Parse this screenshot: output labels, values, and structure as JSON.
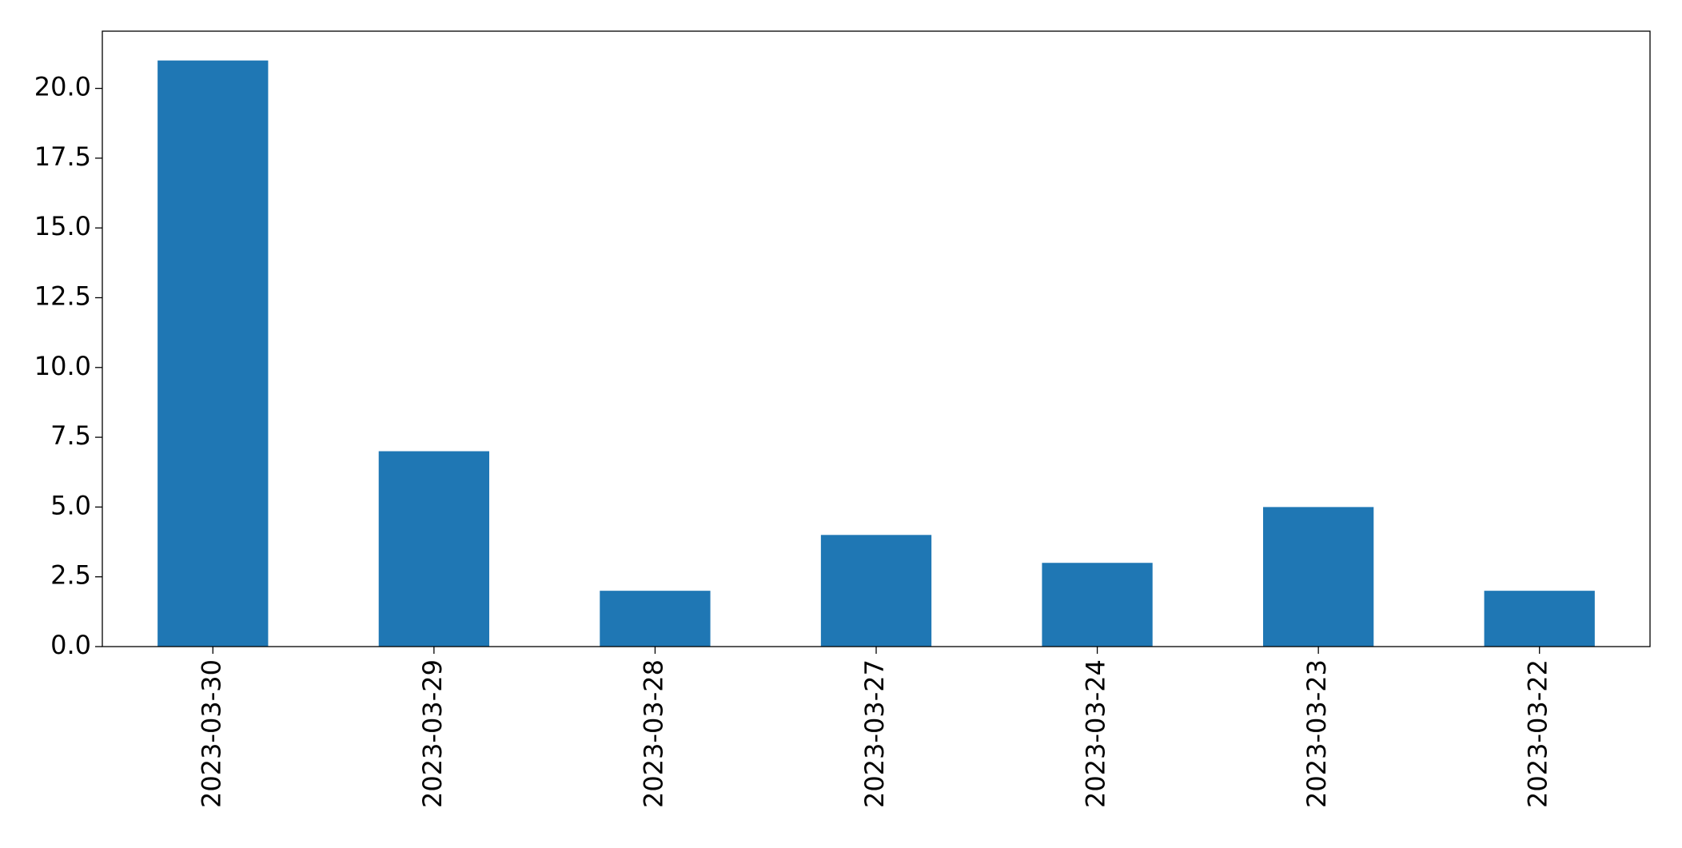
{
  "chart_data": {
    "type": "bar",
    "categories": [
      "2023-03-30",
      "2023-03-29",
      "2023-03-28",
      "2023-03-27",
      "2023-03-24",
      "2023-03-23",
      "2023-03-22"
    ],
    "values": [
      21,
      7,
      2,
      4,
      3,
      5,
      2
    ],
    "color": "#1f77b4",
    "ylim": [
      0,
      22.05
    ],
    "yticks": [
      {
        "value": 0,
        "label": "0.0"
      },
      {
        "value": 2.5,
        "label": "2.5"
      },
      {
        "value": 5,
        "label": "5.0"
      },
      {
        "value": 7.5,
        "label": "7.5"
      },
      {
        "value": 10,
        "label": "10.0"
      },
      {
        "value": 12.5,
        "label": "12.5"
      },
      {
        "value": 15,
        "label": "15.0"
      },
      {
        "value": 17.5,
        "label": "17.5"
      },
      {
        "value": 20,
        "label": "20.0"
      }
    ],
    "grid": false
  }
}
